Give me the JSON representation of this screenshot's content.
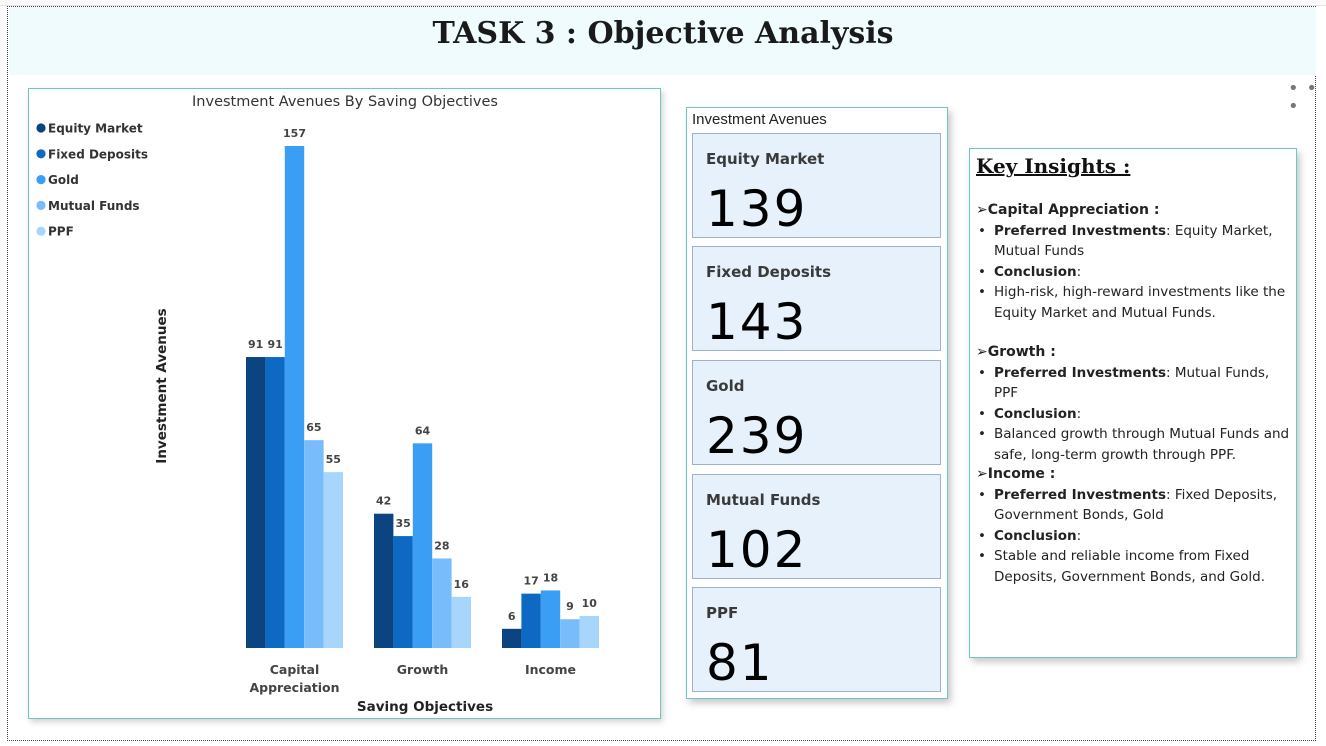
{
  "page_title": "TASK 3 : Objective Analysis",
  "more_icon": "more-options-icon",
  "chart_data": {
    "type": "bar",
    "title": "Investment Avenues By Saving Objectives",
    "xlabel": "Saving Objectives",
    "ylabel": "Investment Avenues",
    "categories": [
      "Capital Appreciation",
      "Growth",
      "Income"
    ],
    "category_lines": [
      [
        "Capital",
        "Appreciation"
      ],
      [
        "Growth"
      ],
      [
        "Income"
      ]
    ],
    "series": [
      {
        "name": "Equity Market",
        "color": "#0b4480",
        "values": [
          91,
          42,
          6
        ]
      },
      {
        "name": "Fixed Deposits",
        "color": "#0e69c2",
        "values": [
          91,
          35,
          17
        ]
      },
      {
        "name": "Gold",
        "color": "#3b9ef5",
        "values": [
          157,
          64,
          18
        ]
      },
      {
        "name": "Mutual Funds",
        "color": "#78bcfb",
        "values": [
          65,
          28,
          9
        ]
      },
      {
        "name": "PPF",
        "color": "#a8d5fc",
        "values": [
          55,
          16,
          10
        ]
      }
    ],
    "ylim": [
      0,
      157
    ],
    "legend": "top-left",
    "grid": false
  },
  "kpi": {
    "heading": "Investment Avenues",
    "cards": [
      {
        "label": "Equity Market",
        "value": "139"
      },
      {
        "label": "Fixed Deposits",
        "value": "143"
      },
      {
        "label": "Gold",
        "value": "239"
      },
      {
        "label": "Mutual Funds",
        "value": "102"
      },
      {
        "label": "PPF",
        "value": "81"
      }
    ]
  },
  "insights": {
    "title": "Key Insights :",
    "arrow": "➢",
    "bullet": "•",
    "sections": [
      {
        "head": "Capital Appreciation :",
        "pref_label": "Preferred Investments",
        "pref_value": ": Equity Market, Mutual Funds",
        "concl_label": "Conclusion",
        "concl_colon": ":",
        "concl_text": "High-risk, high-reward investments like the Equity Market and Mutual Funds."
      },
      {
        "head": "Growth :",
        "pref_label": "Preferred Investments",
        "pref_value": ": Mutual Funds, PPF",
        "concl_label": "Conclusion",
        "concl_colon": ":",
        "concl_text": " Balanced growth through Mutual Funds and safe, long-term growth through PPF."
      },
      {
        "head": "Income :",
        "pref_label": "Preferred Investments",
        "pref_value": ": Fixed Deposits, Government Bonds, Gold",
        "concl_label": "Conclusion",
        "concl_colon": ":",
        "concl_text": "Stable and reliable income from Fixed Deposits, Government Bonds, and Gold."
      }
    ]
  }
}
